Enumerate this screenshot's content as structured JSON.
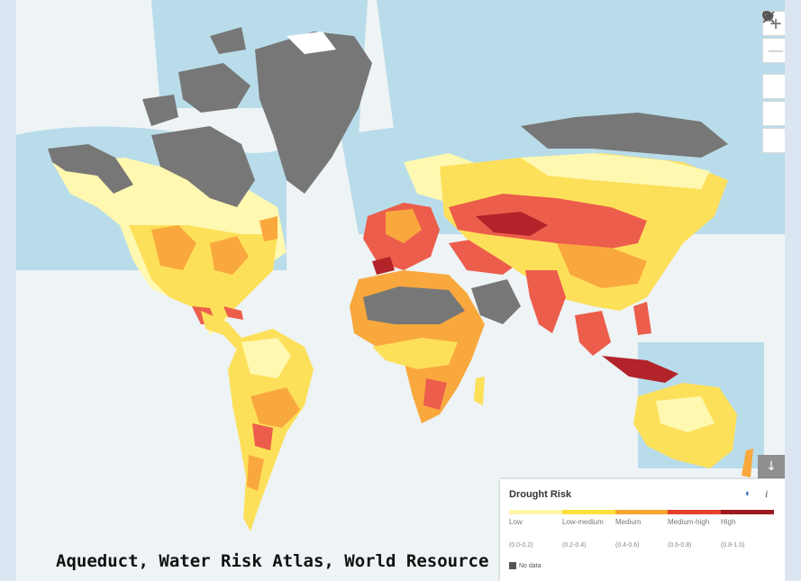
{
  "map": {
    "layer": "Drought Risk",
    "colors": {
      "ocean": "#eef3f5",
      "shelf": "#b9dcea",
      "no_data": "#777777",
      "low": "#fff8b0",
      "low_medium": "#fde05a",
      "medium": "#f9a83e",
      "medium_high": "#ec5d4b",
      "high": "#b3232a"
    }
  },
  "controls": {
    "zoom_in": "+",
    "zoom_out": "—",
    "locate_icon": "location-pin-icon",
    "collapse_icon": "collapse-arrows-icon",
    "share_icon": "share-arrow-icon",
    "download": "↓"
  },
  "legend": {
    "title": "Drought Risk",
    "opacity_icon": "◐",
    "info_icon": "i",
    "classes": [
      {
        "label": "Low",
        "range": "(0.0-0.2)",
        "color": "#fff7a8"
      },
      {
        "label": "Low-medium",
        "range": "(0.2-0.4)",
        "color": "#fde03a"
      },
      {
        "label": "Medium",
        "range": "(0.4-0.6)",
        "color": "#f7a531"
      },
      {
        "label": "Medium-high",
        "range": "(0.6-0.8)",
        "color": "#e8402e"
      },
      {
        "label": "High",
        "range": "(0.8-1.0)",
        "color": "#9b1b1e"
      }
    ],
    "no_data": "No data"
  },
  "caption": "Aqueduct, Water Risk Atlas, World Resource"
}
